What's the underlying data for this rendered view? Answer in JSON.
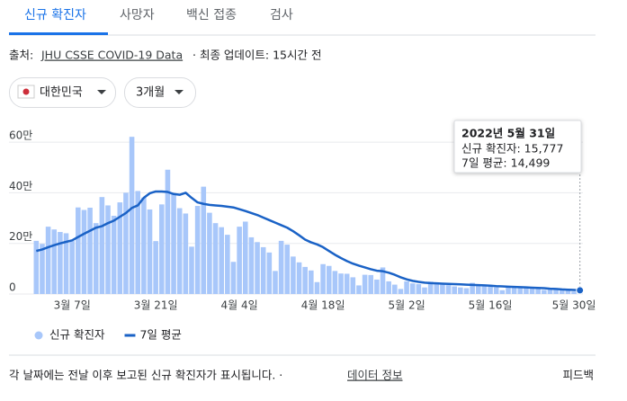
{
  "tabs": [
    "신규 확진자",
    "사망자",
    "백신 접종",
    "검사"
  ],
  "source": {
    "label": "출처:",
    "link": "JHU CSSE COVID-19 Data",
    "updated": "· 최종 업데이트: 15시간 전"
  },
  "filters": [
    "대한민국",
    "3개월"
  ],
  "chart_data": {
    "type": "bar",
    "categories": [
      null,
      null,
      null,
      null,
      null,
      null,
      "3월 7일",
      null,
      null,
      null,
      null,
      null,
      null,
      null,
      null,
      null,
      null,
      null,
      null,
      null,
      "3월 21일",
      null,
      null,
      null,
      null,
      null,
      null,
      null,
      null,
      null,
      null,
      null,
      null,
      null,
      "4월 4일",
      null,
      null,
      null,
      null,
      null,
      null,
      null,
      null,
      null,
      null,
      null,
      null,
      null,
      "4월 18일",
      null,
      null,
      null,
      null,
      null,
      null,
      null,
      null,
      null,
      null,
      null,
      null,
      null,
      "5월 2일",
      null,
      null,
      null,
      null,
      null,
      null,
      null,
      null,
      null,
      null,
      null,
      null,
      null,
      "5월 16일",
      null,
      null,
      null,
      null,
      null,
      null,
      null,
      null,
      null,
      null,
      null,
      null,
      null,
      "5월 30일",
      null
    ],
    "series": [
      {
        "name": "신규 확진자",
        "type": "bar",
        "color": "#a8c7fa",
        "values": [
          210000,
          198000,
          266000,
          255000,
          245000,
          240000,
          210000,
          342000,
          332000,
          341000,
          280000,
          383000,
          350000,
          309000,
          362000,
          400000,
          621000,
          407000,
          381000,
          334000,
          209000,
          354000,
          491000,
          395000,
          339000,
          318000,
          187000,
          348000,
          424000,
          321000,
          280000,
          264000,
          234000,
          127000,
          266000,
          286000,
          224000,
          205000,
          185000,
          164000,
          91000,
          210000,
          195000,
          148000,
          125000,
          107000,
          93000,
          47000,
          118000,
          111000,
          91000,
          81000,
          80000,
          66000,
          34000,
          76000,
          75000,
          57000,
          105000,
          50000,
          37000,
          20000,
          50000,
          42000,
          39000,
          26000,
          49000,
          43000,
          40000,
          35000,
          30000,
          26000,
          23000,
          44000,
          35000,
          32000,
          29000,
          26000,
          15000,
          29000,
          32000,
          27000,
          25000,
          23000,
          22000,
          16000,
          24000,
          20000,
          21000,
          17000,
          10000,
          15777
        ]
      },
      {
        "name": "7일 평균",
        "type": "line",
        "color": "#1a62c6",
        "values": [
          170000,
          176000,
          185000,
          193000,
          200000,
          206000,
          212000,
          225000,
          238000,
          250000,
          262000,
          268000,
          280000,
          290000,
          305000,
          320000,
          340000,
          350000,
          380000,
          398000,
          405000,
          405000,
          403000,
          395000,
          392000,
          400000,
          380000,
          362000,
          356000,
          352000,
          350000,
          348000,
          345000,
          342000,
          335000,
          328000,
          320000,
          312000,
          302000,
          292000,
          282000,
          272000,
          262000,
          248000,
          232000,
          215000,
          204000,
          196000,
          185000,
          170000,
          155000,
          142000,
          130000,
          120000,
          112000,
          105000,
          98000,
          92000,
          90000,
          84000,
          76000,
          66000,
          58000,
          52000,
          48000,
          45000,
          43000,
          42000,
          41000,
          40000,
          39000,
          38000,
          37000,
          36000,
          35000,
          34000,
          33000,
          31000,
          30000,
          29000,
          28000,
          27000,
          26000,
          25000,
          24000,
          23000,
          21000,
          20000,
          18000,
          17000,
          16000,
          14499
        ]
      }
    ],
    "ylim": [
      0,
      650000
    ],
    "yticks": [
      0,
      {
        "value": 200000,
        "label": "20만"
      },
      {
        "value": 400000,
        "label": "40만"
      },
      {
        "value": 600000,
        "label": "60만"
      }
    ],
    "grid": true,
    "tooltip": {
      "title": "2022년 5월 31일",
      "lines": [
        "신규 확진자: 15,777",
        "7일 평균: 14,499"
      ]
    }
  },
  "footer": {
    "note": "각 날짜에는 전날 이후 보고된 신규 확진자가 표시됩니다. ·",
    "link": "데이터 정보",
    "feedback": "피드백"
  }
}
